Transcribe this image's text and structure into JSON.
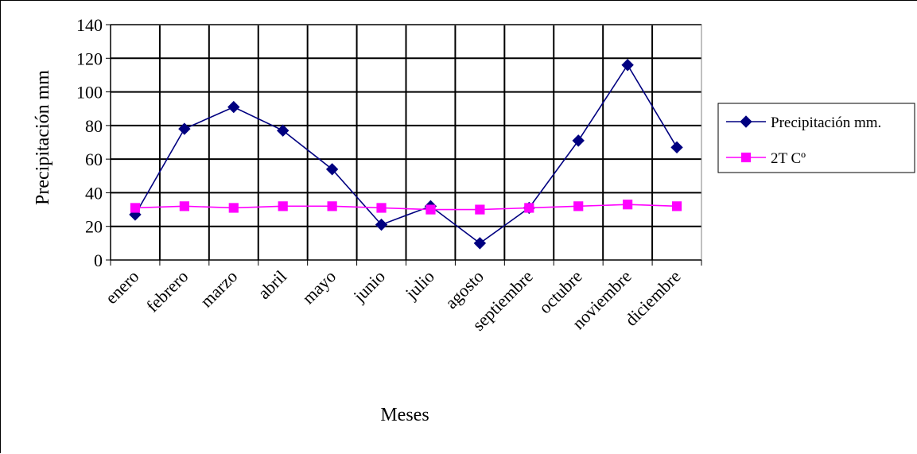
{
  "chart_data": {
    "type": "line",
    "xlabel": "Meses",
    "ylabel": "Precipitación mm",
    "ylim": [
      0,
      140
    ],
    "ytick_step": 20,
    "grid": true,
    "legend_position": "right",
    "categories": [
      "enero",
      "febrero",
      "marzo",
      "abril",
      "mayo",
      "junio",
      "julio",
      "agosto",
      "septiembre",
      "octubre",
      "noviembre",
      "diciembre"
    ],
    "series": [
      {
        "name": "Precipitación mm.",
        "color": "#000080",
        "marker": "diamond",
        "values": [
          27,
          78,
          91,
          77,
          54,
          21,
          32,
          10,
          31,
          71,
          116,
          67
        ]
      },
      {
        "name": "2T Cº",
        "color": "#FF00FF",
        "marker": "square",
        "values": [
          31,
          32,
          31,
          32,
          32,
          31,
          30,
          30,
          31,
          32,
          33,
          32
        ]
      }
    ]
  }
}
